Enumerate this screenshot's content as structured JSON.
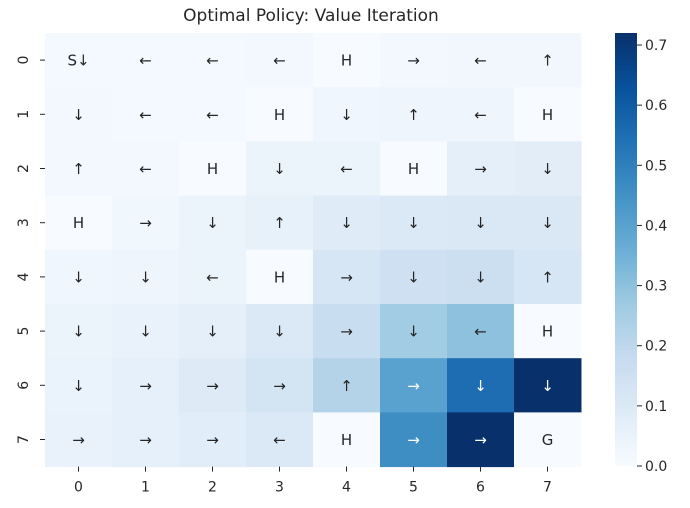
{
  "chart_data": {
    "type": "heatmap",
    "title": "Optimal Policy: Value Iteration",
    "xlabel": "",
    "ylabel": "",
    "x_ticks": [
      "0",
      "1",
      "2",
      "3",
      "4",
      "5",
      "6",
      "7"
    ],
    "y_ticks": [
      "0",
      "1",
      "2",
      "3",
      "4",
      "5",
      "6",
      "7"
    ],
    "values": [
      [
        0.014,
        0.013,
        0.014,
        0.017,
        0.0,
        0.019,
        0.021,
        0.022
      ],
      [
        0.015,
        0.014,
        0.014,
        0.0,
        0.027,
        0.031,
        0.034,
        0.0
      ],
      [
        0.017,
        0.015,
        0.0,
        0.045,
        0.04,
        0.0,
        0.068,
        0.077
      ],
      [
        0.0,
        0.024,
        0.042,
        0.058,
        0.087,
        0.1,
        0.105,
        0.105
      ],
      [
        0.028,
        0.033,
        0.045,
        0.0,
        0.12,
        0.15,
        0.16,
        0.12
      ],
      [
        0.04,
        0.05,
        0.067,
        0.1,
        0.17,
        0.26,
        0.3,
        0.0
      ],
      [
        0.048,
        0.06,
        0.09,
        0.13,
        0.22,
        0.4,
        0.55,
        0.72
      ],
      [
        0.049,
        0.06,
        0.08,
        0.1,
        0.0,
        0.46,
        0.72,
        0.0
      ]
    ],
    "labels": [
      [
        "S↓",
        "←",
        "←",
        "←",
        "H",
        "→",
        "←",
        "↑"
      ],
      [
        "↓",
        "←",
        "←",
        "H",
        "↓",
        "↑",
        "←",
        "H"
      ],
      [
        "↑",
        "←",
        "H",
        "↓",
        "←",
        "H",
        "→",
        "↓"
      ],
      [
        "H",
        "→",
        "↓",
        "↑",
        "↓",
        "↓",
        "↓",
        "↓"
      ],
      [
        "↓",
        "↓",
        "←",
        "H",
        "→",
        "↓",
        "↓",
        "↑"
      ],
      [
        "↓",
        "↓",
        "↓",
        "↓",
        "→",
        "↓",
        "←",
        "H"
      ],
      [
        "↓",
        "→",
        "→",
        "→",
        "↑",
        "→",
        "↓",
        "↓"
      ],
      [
        "→",
        "→",
        "→",
        "←",
        "H",
        "→",
        "→",
        "G"
      ]
    ],
    "colorbar": {
      "min": 0.0,
      "max": 0.72,
      "ticks": [
        0.0,
        0.1,
        0.2,
        0.3,
        0.4,
        0.5,
        0.6,
        0.7
      ],
      "tick_labels": [
        "0.0",
        "0.1",
        "0.2",
        "0.3",
        "0.4",
        "0.5",
        "0.6",
        "0.7"
      ]
    },
    "colormap": [
      "#f7fbff",
      "#deebf7",
      "#c6dbef",
      "#9ecae1",
      "#6baed6",
      "#4292c6",
      "#2171b5",
      "#08519c",
      "#08306b"
    ],
    "grid": false,
    "legend": "colorbar-right"
  }
}
